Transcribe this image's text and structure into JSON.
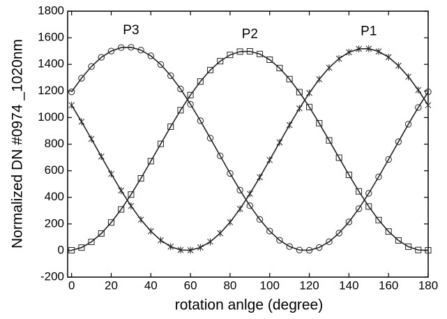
{
  "chart_data": {
    "type": "line",
    "x_label": "rotation anlge (degree)",
    "y_label": "Normalized DN #0974 _1020nm",
    "xlim": [
      -2,
      180
    ],
    "ylim": [
      -200,
      1800
    ],
    "xticks": [
      0,
      20,
      40,
      60,
      80,
      100,
      120,
      140,
      160,
      180
    ],
    "yticks": [
      -200,
      0,
      200,
      400,
      600,
      800,
      1000,
      1200,
      1400,
      1600,
      1800
    ],
    "x": [
      0,
      5,
      10,
      15,
      20,
      25,
      30,
      35,
      40,
      45,
      50,
      55,
      60,
      65,
      70,
      75,
      80,
      85,
      90,
      95,
      100,
      105,
      110,
      115,
      120,
      125,
      130,
      135,
      140,
      145,
      150,
      155,
      160,
      165,
      170,
      175,
      180
    ],
    "series": [
      {
        "name": "P1",
        "marker": "asterisk",
        "color": "#222222",
        "values": [
          1093,
          969,
          839,
          707,
          576,
          451,
          335,
          232,
          145,
          77,
          29,
          4,
          2,
          23,
          66,
          130,
          213,
          313,
          427,
          551,
          681,
          813,
          944,
          1069,
          1185,
          1288,
          1375,
          1443,
          1491,
          1516,
          1518,
          1497,
          1454,
          1390,
          1307,
          1207,
          1093
        ]
      },
      {
        "name": "P2",
        "marker": "square",
        "color": "#222222",
        "values": [
          2,
          22,
          65,
          128,
          211,
          309,
          421,
          543,
          672,
          802,
          931,
          1055,
          1169,
          1271,
          1357,
          1424,
          1471,
          1496,
          1498,
          1478,
          1435,
          1372,
          1289,
          1191,
          1079,
          957,
          828,
          698,
          569,
          445,
          331,
          229,
          143,
          76,
          29,
          4,
          2
        ]
      },
      {
        "name": "P3",
        "marker": "circle",
        "color": "#222222",
        "values": [
          1193,
          1296,
          1384,
          1453,
          1500,
          1526,
          1528,
          1507,
          1464,
          1399,
          1315,
          1215,
          1100,
          976,
          845,
          712,
          580,
          454,
          337,
          234,
          146,
          77,
          30,
          4,
          2,
          23,
          66,
          131,
          215,
          315,
          430,
          554,
          685,
          818,
          950,
          1076,
          1193
        ]
      }
    ]
  }
}
